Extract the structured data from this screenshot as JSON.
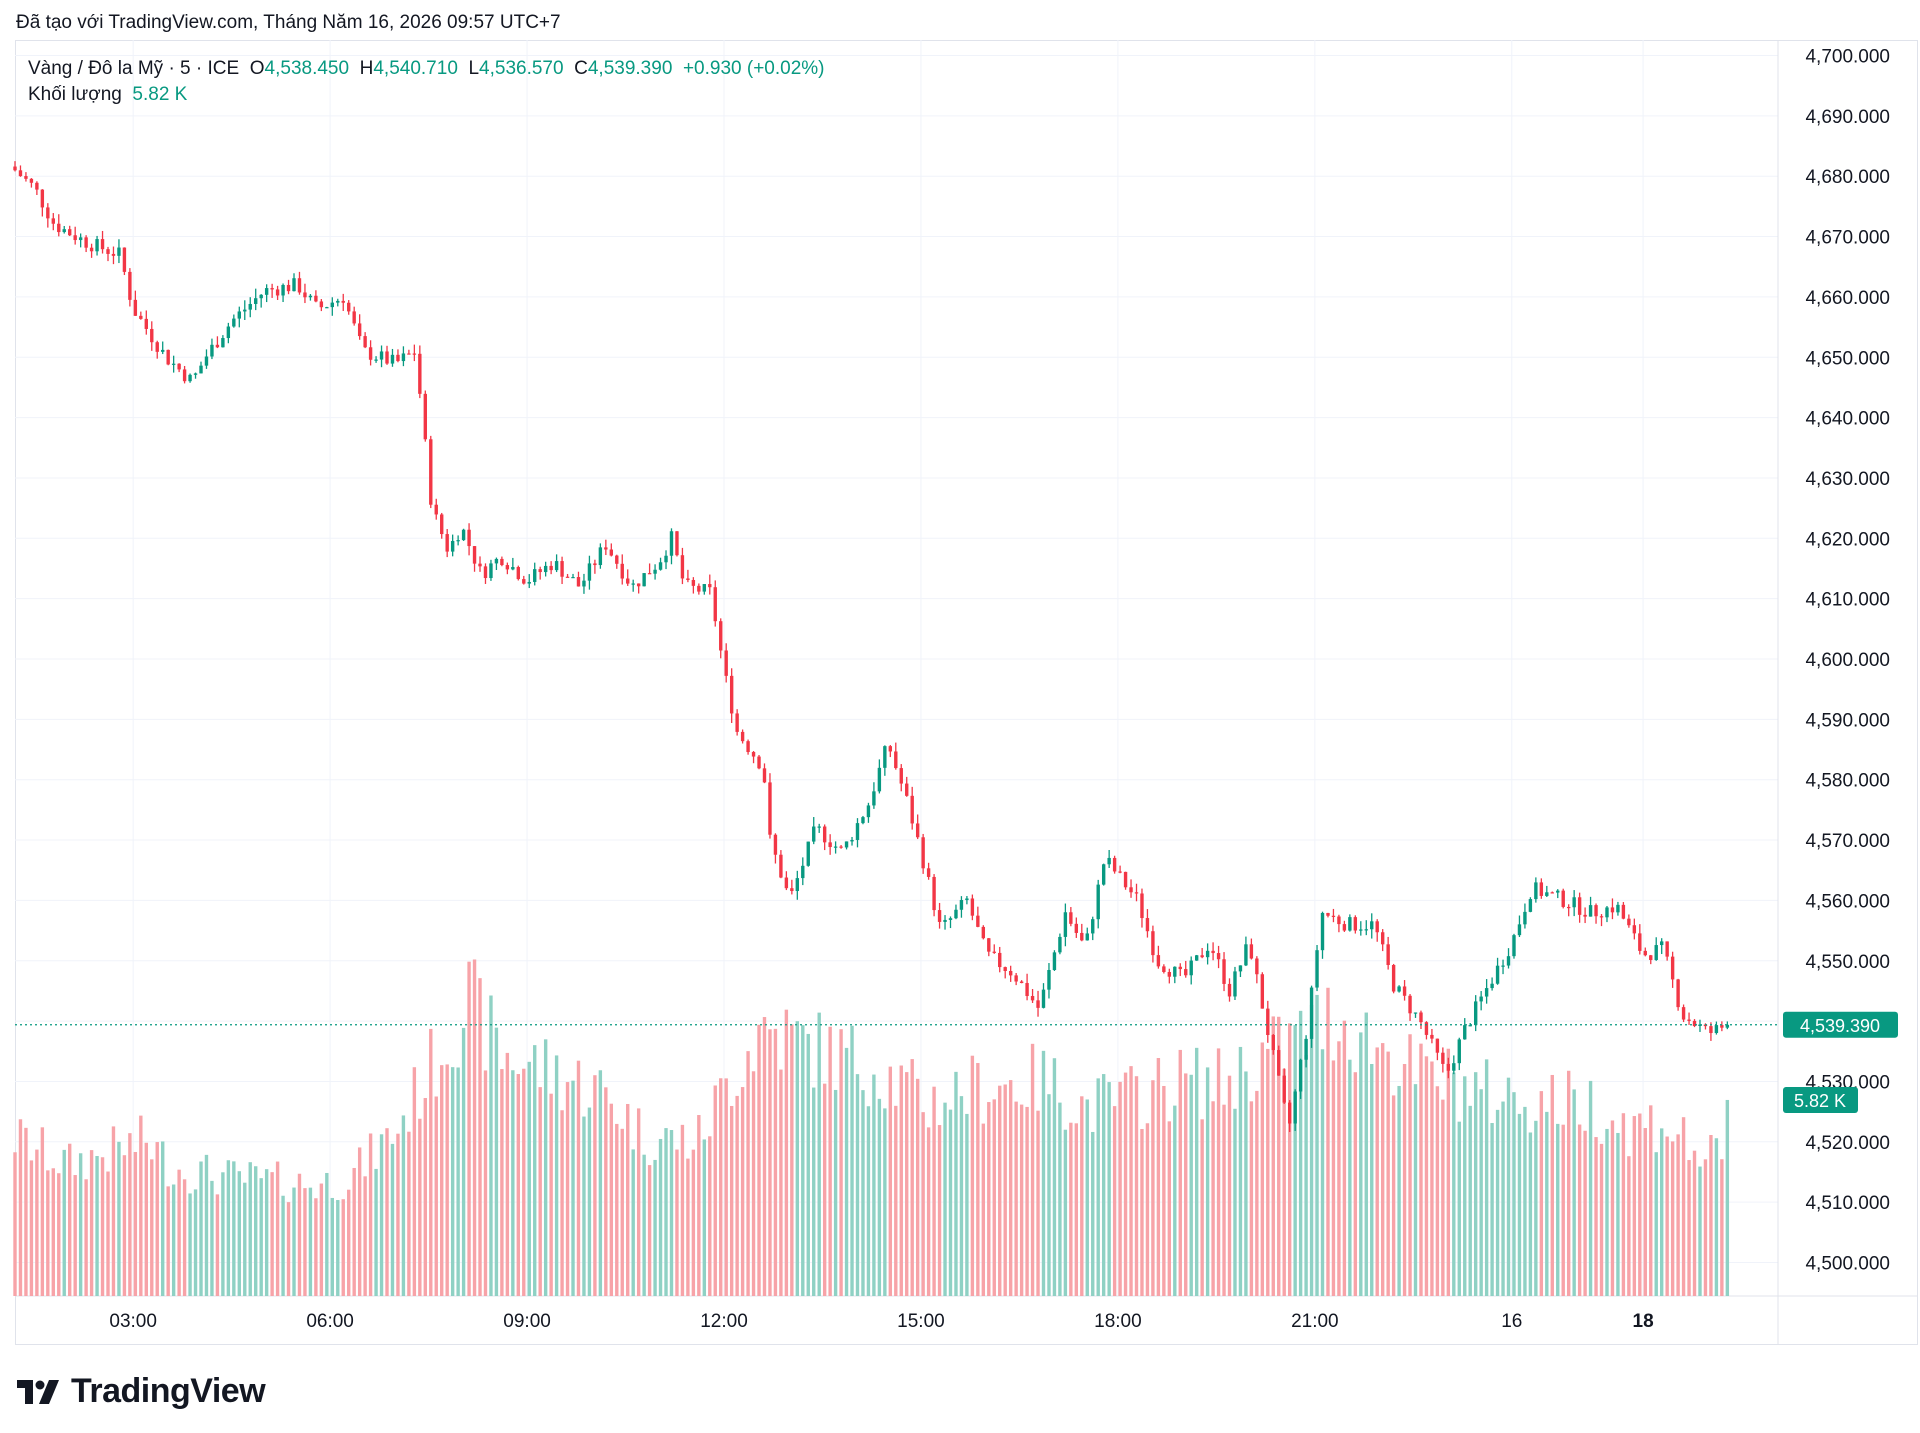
{
  "header": {
    "credit": "Đã tạo với TradingView.com, Tháng Năm 16, 2026 09:57 UTC+7"
  },
  "legend": {
    "symbol": "Vàng / Đô la Mỹ · 5 · ICE",
    "o_label": "O",
    "o_value": "4,538.450",
    "h_label": "H",
    "h_value": "4,540.710",
    "l_label": "L",
    "l_value": "4,536.570",
    "c_label": "C",
    "c_value": "4,539.390",
    "change": "+0.930 (+0.02%)",
    "volume_label": "Khối lượng",
    "volume_value": "5.82 K"
  },
  "logo": {
    "text": "TradingView"
  },
  "colors": {
    "up": "#089981",
    "down": "#f23645",
    "up_volume": "#8fd1c4",
    "down_volume": "#f7a3a8",
    "grid": "#f0f3fa"
  },
  "chart_data": {
    "type": "candlestick",
    "title": "Vàng / Đô la Mỹ · 5 · ICE",
    "interval": "5 minutes",
    "y_ticks": [
      "4,700.000",
      "4,690.000",
      "4,680.000",
      "4,670.000",
      "4,660.000",
      "4,650.000",
      "4,640.000",
      "4,630.000",
      "4,620.000",
      "4,610.000",
      "4,600.000",
      "4,590.000",
      "4,580.000",
      "4,570.000",
      "4,560.000",
      "4,550.000",
      "4,540.000",
      "4,530.000",
      "4,520.000",
      "4,510.000",
      "4,500.000"
    ],
    "y_tick_values": [
      4700,
      4690,
      4680,
      4670,
      4660,
      4650,
      4640,
      4630,
      4620,
      4610,
      4600,
      4590,
      4580,
      4570,
      4560,
      4550,
      4540,
      4530,
      4520,
      4510,
      4500
    ],
    "ylim": [
      4500,
      4700
    ],
    "x_ticks": [
      "03:00",
      "06:00",
      "09:00",
      "12:00",
      "15:00",
      "18:00",
      "21:00",
      "16",
      "18"
    ],
    "x_tick_hours": [
      3,
      6,
      9,
      12,
      15,
      18,
      21,
      24,
      26
    ],
    "xlim_hours": [
      1.2,
      27.4
    ],
    "last_price": "4,539.390",
    "last_price_value": 4539.39,
    "last_volume": "5.82 K",
    "last_volume_value": 5820,
    "volume_max": 9500,
    "anchors": [
      [
        1.2,
        4681
      ],
      [
        1.5,
        4678
      ],
      [
        1.8,
        4672
      ],
      [
        2.3,
        4669
      ],
      [
        2.8,
        4667
      ],
      [
        3.0,
        4658
      ],
      [
        3.5,
        4650
      ],
      [
        3.9,
        4646
      ],
      [
        4.1,
        4650
      ],
      [
        4.5,
        4656
      ],
      [
        5.0,
        4661
      ],
      [
        5.5,
        4662
      ],
      [
        5.8,
        4658
      ],
      [
        6.2,
        4660
      ],
      [
        6.5,
        4651
      ],
      [
        7.0,
        4649
      ],
      [
        7.3,
        4651
      ],
      [
        7.55,
        4625
      ],
      [
        7.8,
        4618
      ],
      [
        8.0,
        4622
      ],
      [
        8.3,
        4614
      ],
      [
        8.6,
        4617
      ],
      [
        9.0,
        4613
      ],
      [
        9.4,
        4616
      ],
      [
        9.8,
        4612
      ],
      [
        10.2,
        4619
      ],
      [
        10.6,
        4612
      ],
      [
        11.0,
        4616
      ],
      [
        11.2,
        4620
      ],
      [
        11.4,
        4612
      ],
      [
        11.8,
        4611
      ],
      [
        12.0,
        4598
      ],
      [
        12.2,
        4588
      ],
      [
        12.6,
        4582
      ],
      [
        12.7,
        4570
      ],
      [
        13.0,
        4560
      ],
      [
        13.4,
        4572
      ],
      [
        13.8,
        4568
      ],
      [
        14.2,
        4576
      ],
      [
        14.5,
        4586
      ],
      [
        14.8,
        4576
      ],
      [
        15.0,
        4568
      ],
      [
        15.3,
        4555
      ],
      [
        15.7,
        4560
      ],
      [
        16.0,
        4551
      ],
      [
        16.4,
        4548
      ],
      [
        16.8,
        4542
      ],
      [
        17.2,
        4558
      ],
      [
        17.5,
        4552
      ],
      [
        17.8,
        4567
      ],
      [
        18.3,
        4560
      ],
      [
        18.6,
        4550
      ],
      [
        19.0,
        4547
      ],
      [
        19.4,
        4553
      ],
      [
        19.7,
        4545
      ],
      [
        20.0,
        4553
      ],
      [
        20.25,
        4540
      ],
      [
        20.6,
        4522
      ],
      [
        20.9,
        4540
      ],
      [
        21.1,
        4558
      ],
      [
        21.5,
        4556
      ],
      [
        21.9,
        4556
      ],
      [
        22.2,
        4546
      ],
      [
        22.6,
        4540
      ],
      [
        23.0,
        4531
      ],
      [
        23.3,
        4539
      ],
      [
        23.7,
        4547
      ],
      [
        24.0,
        4553
      ],
      [
        24.3,
        4562
      ],
      [
        24.8,
        4560
      ],
      [
        25.2,
        4558
      ],
      [
        25.6,
        4559
      ],
      [
        26.0,
        4551
      ],
      [
        26.3,
        4552
      ],
      [
        26.6,
        4541
      ],
      [
        27.0,
        4538
      ],
      [
        27.3,
        4539.4
      ]
    ],
    "volume_anchors": [
      [
        1.2,
        4700
      ],
      [
        2.0,
        3900
      ],
      [
        3.2,
        4600
      ],
      [
        3.6,
        3800
      ],
      [
        4.5,
        3500
      ],
      [
        5.8,
        3300
      ],
      [
        6.3,
        3500
      ],
      [
        7.0,
        4900
      ],
      [
        7.6,
        7000
      ],
      [
        8.1,
        8800
      ],
      [
        8.6,
        7200
      ],
      [
        9.2,
        6800
      ],
      [
        10.2,
        6000
      ],
      [
        10.8,
        4700
      ],
      [
        11.6,
        4600
      ],
      [
        12.1,
        6500
      ],
      [
        12.6,
        8000
      ],
      [
        13.3,
        7400
      ],
      [
        14.3,
        6800
      ],
      [
        15.1,
        5700
      ],
      [
        15.6,
        6100
      ],
      [
        16.3,
        6300
      ],
      [
        16.9,
        6400
      ],
      [
        17.5,
        5600
      ],
      [
        18.2,
        5900
      ],
      [
        19.0,
        6400
      ],
      [
        19.6,
        6300
      ],
      [
        20.3,
        7200
      ],
      [
        20.7,
        7600
      ],
      [
        21.3,
        8300
      ],
      [
        22.0,
        7400
      ],
      [
        22.6,
        6500
      ],
      [
        23.0,
        6400
      ],
      [
        23.6,
        6000
      ],
      [
        24.4,
        5800
      ],
      [
        25.2,
        5700
      ],
      [
        25.8,
        5000
      ],
      [
        26.3,
        5200
      ],
      [
        26.8,
        4300
      ],
      [
        27.3,
        3800
      ]
    ]
  }
}
